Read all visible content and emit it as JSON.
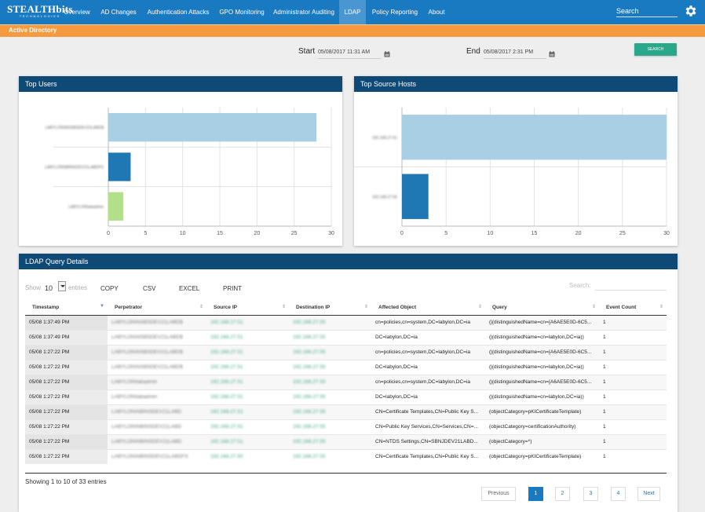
{
  "brand": {
    "name": "STEALTHbits",
    "tagline": "TECHNOLOGIES"
  },
  "nav": {
    "items": [
      {
        "label": "Overview"
      },
      {
        "label": "AD Changes"
      },
      {
        "label": "Authentication Attacks"
      },
      {
        "label": "GPO Monitoring"
      },
      {
        "label": "Administrator Auditing"
      },
      {
        "label": "LDAP",
        "active": true
      },
      {
        "label": "Policy Reporting"
      },
      {
        "label": "About"
      }
    ],
    "search_placeholder": "Search",
    "settings_icon": "gear-icon"
  },
  "subheader": {
    "title": "Active Directory"
  },
  "filters": {
    "start_label": "Start",
    "start_value": "05/08/2017 11:31 AM",
    "end_label": "End",
    "end_value": "05/08/2017 2:31 PM",
    "search_button": "SEARCH",
    "calendar_icon": "calendar-icon"
  },
  "top_users": {
    "title": "Top Users"
  },
  "top_hosts": {
    "title": "Top Source Hosts"
  },
  "chart_data": [
    {
      "type": "bar",
      "orientation": "horizontal",
      "title": "Top Users",
      "categories": [
        "LABYLON\\INSSBSDEV21LABD$",
        "LABYLON\\NBINSDEV21LABDFS",
        "LABYLON\\labadmin"
      ],
      "values": [
        28,
        3,
        2
      ],
      "colors": [
        "#a9cfe4",
        "#1f78b4",
        "#b2df8a"
      ],
      "xlim": [
        0,
        30
      ],
      "xticks": [
        0,
        5,
        10,
        15,
        20,
        25,
        30
      ],
      "grid": true
    },
    {
      "type": "bar",
      "orientation": "horizontal",
      "title": "Top Source Hosts",
      "categories": [
        "192.168.27.61",
        "192.168.27.55"
      ],
      "values": [
        30,
        3
      ],
      "colors": [
        "#a9cfe4",
        "#1f78b4"
      ],
      "xlim": [
        0,
        30
      ],
      "xticks": [
        0,
        5,
        10,
        15,
        20,
        25,
        30
      ],
      "grid": true
    }
  ],
  "details": {
    "title": "LDAP Query Details",
    "show_label": "Show",
    "page_size": "10",
    "entries_label": "entries",
    "buttons": [
      "COPY",
      "CSV",
      "EXCEL",
      "PRINT"
    ],
    "search_label": "Search:",
    "columns": [
      "Timestamp",
      "Perpetrator",
      "Source IP",
      "Destination IP",
      "Affected Object",
      "Query",
      "Event Count"
    ],
    "rows": [
      [
        "05/08 1:37:49 PM",
        "LABYLON\\NSBSDEV21LABD$",
        "192.168.27.51",
        "192.168.27.55",
        "cn=policies,cn=system,DC=labylon,DC=ia",
        "(|(distinguishedName=cn={A6AE5E0D-6C5...",
        "1"
      ],
      [
        "05/08 1:37:49 PM",
        "LABYLON\\NSBSDEV21LABD$",
        "192.168.27.51",
        "192.168.27.55",
        "DC=labylon,DC=ia",
        "(|(distinguishedName=cn=labylon,DC=ia))",
        "1"
      ],
      [
        "05/08 1:27:22 PM",
        "LABYLON\\NSBSDEV21LABD$",
        "192.168.27.51",
        "192.168.27.55",
        "cn=policies,cn=system,DC=labylon,DC=ia",
        "(|(distinguishedName=cn={A6AE5E0D-6C5...",
        "1"
      ],
      [
        "05/08 1:27:22 PM",
        "LABYLON\\NSBSDEV21LABD$",
        "192.168.27.51",
        "192.168.27.55",
        "DC=labylon,DC=ia",
        "(|(distinguishedName=cn=labylon,DC=ia))",
        "1"
      ],
      [
        "05/08 1:27:22 PM",
        "LABYLON\\labadmin",
        "192.168.27.51",
        "192.168.27.55",
        "cn=policies,cn=system,DC=labylon,DC=ia",
        "(|(distinguishedName=cn={A6AE5E0D-6C5...",
        "1"
      ],
      [
        "05/08 1:27:22 PM",
        "LABYLON\\labadmin",
        "192.168.27.51",
        "192.168.27.55",
        "DC=labylon,DC=ia",
        "(|(distinguishedName=cn=labylon,DC=ia))",
        "1"
      ],
      [
        "05/08 1:27:22 PM",
        "LABYLON\\NBINSDEV21LABD",
        "192.168.27.51",
        "192.168.27.55",
        "CN=Certificate Templates,CN=Public Key S...",
        "(objectCategory=pKICertificateTemplate)",
        "1"
      ],
      [
        "05/08 1:27:22 PM",
        "LABYLON\\NBINSDEV21LABD",
        "192.168.27.51",
        "192.168.27.55",
        "CN=Public Key Services,CN=Services,CN=...",
        "(objectCategory=certificationAuthority)",
        "1"
      ],
      [
        "05/08 1:27:22 PM",
        "LABYLON\\NBINSDEV21LABD",
        "192.168.27.51",
        "192.168.27.55",
        "CN=NTDS Settings,CN=SBNJDEV21LABD...",
        "(objectCategory=*)",
        "1"
      ],
      [
        "05/08 1:27:22 PM",
        "LABYLON\\NBINSDEV21LABDFS",
        "192.168.27.50",
        "192.168.27.55",
        "CN=Certificate Templates,CN=Public Key S...",
        "(objectCategory=pKICertificateTemplate)",
        "1"
      ]
    ],
    "showing_text": "Showing 1 to 10 of 33 entries",
    "pagination": {
      "previous": "Previous",
      "pages": [
        "1",
        "2",
        "3",
        "4"
      ],
      "current": "1",
      "next": "Next"
    }
  }
}
